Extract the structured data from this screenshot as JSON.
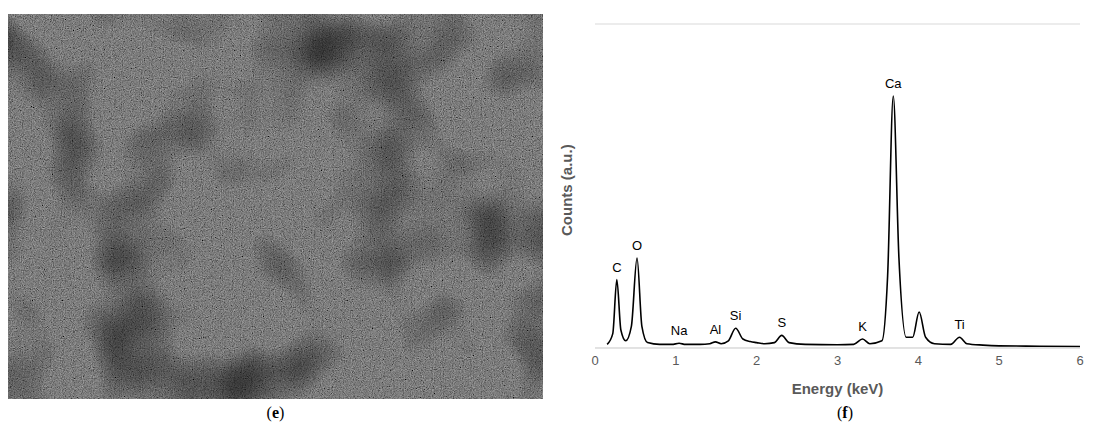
{
  "image_panel": {
    "panel_label": "(e)"
  },
  "chart_data": {
    "type": "line",
    "panel_label": "(f)",
    "x_label": "Energy (keV)",
    "y_label": "Counts (a.u.)",
    "x": [
      0.15,
      0.22,
      0.27,
      0.32,
      0.38,
      0.45,
      0.52,
      0.58,
      0.65,
      0.8,
      0.95,
      1.04,
      1.12,
      1.3,
      1.42,
      1.49,
      1.56,
      1.65,
      1.74,
      1.83,
      1.92,
      2.0,
      2.1,
      2.22,
      2.31,
      2.4,
      2.6,
      3.0,
      3.2,
      3.31,
      3.4,
      3.55,
      3.62,
      3.69,
      3.76,
      3.85,
      3.93,
      4.01,
      4.09,
      4.2,
      4.4,
      4.51,
      4.6,
      4.8,
      5.0,
      5.5,
      6.0
    ],
    "values": [
      1,
      4,
      19,
      5,
      2,
      6,
      25,
      6,
      1.5,
      1,
      1,
      1.3,
      1,
      1,
      1.2,
      1.7,
      1.2,
      2,
      5.5,
      2.5,
      1.8,
      1.5,
      1.2,
      1.5,
      3.5,
      1.5,
      1,
      0.9,
      1,
      2.5,
      1.2,
      2,
      20,
      70,
      25,
      3,
      3,
      10,
      3,
      1.2,
      1,
      3,
      1.2,
      0.8,
      0.6,
      0.5,
      0.4
    ],
    "color": "#000000",
    "xlim": [
      0,
      6
    ],
    "xticks": [
      0,
      1,
      2,
      3,
      4,
      5,
      6
    ],
    "ylim": [
      0,
      90
    ],
    "yticks": [
      0,
      10,
      20,
      30,
      40,
      50,
      60,
      70,
      80,
      90
    ],
    "grid": true,
    "tick_labels": "x",
    "annotations": [
      {
        "text": "C",
        "x": 0.27,
        "y": 19
      },
      {
        "text": "O",
        "x": 0.52,
        "y": 25
      },
      {
        "text": "Na",
        "x": 1.04,
        "y": 1.3
      },
      {
        "text": "Al",
        "x": 1.49,
        "y": 1.7
      },
      {
        "text": "Si",
        "x": 1.74,
        "y": 5.5
      },
      {
        "text": "S",
        "x": 2.31,
        "y": 3.5
      },
      {
        "text": "K",
        "x": 3.31,
        "y": 2.5
      },
      {
        "text": "Ca",
        "x": 3.69,
        "y": 70
      },
      {
        "text": "Ti",
        "x": 4.51,
        "y": 3
      }
    ]
  }
}
